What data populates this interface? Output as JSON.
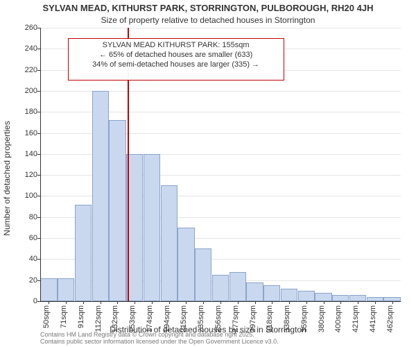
{
  "title_main": "SYLVAN MEAD, KITHURST PARK, STORRINGTON, PULBOROUGH, RH20 4JH",
  "title_sub": "Size of property relative to detached houses in Storrington",
  "y_axis_label": "Number of detached properties",
  "x_axis_label": "Distribution of detached houses by size in Storrington",
  "chart": {
    "type": "histogram",
    "background_color": "#ffffff",
    "grid_color": "#e5e5e5",
    "axis_color": "#333333",
    "bar_fill": "#c9d8ef",
    "bar_border": "#8aa3c8",
    "bar_border_width": 1,
    "ylim": [
      0,
      260
    ],
    "ytick_step": 20,
    "yticks": [
      0,
      20,
      40,
      60,
      80,
      100,
      120,
      140,
      160,
      180,
      200,
      220,
      240,
      260
    ],
    "xticks": [
      "50sqm",
      "71sqm",
      "91sqm",
      "112sqm",
      "132sqm",
      "153sqm",
      "174sqm",
      "194sqm",
      "215sqm",
      "235sqm",
      "256sqm",
      "277sqm",
      "297sqm",
      "318sqm",
      "338sqm",
      "359sqm",
      "380sqm",
      "400sqm",
      "421sqm",
      "441sqm",
      "462sqm"
    ],
    "values": [
      22,
      22,
      92,
      200,
      172,
      140,
      140,
      110,
      70,
      50,
      25,
      28,
      18,
      15,
      12,
      10,
      8,
      6,
      6,
      4,
      4
    ],
    "bar_width_ratio": 0.98
  },
  "reference_line": {
    "value_sqm": 155,
    "index_position": 5.1,
    "color": "#c00000",
    "width": 2
  },
  "annotation": {
    "lines": [
      "SYLVAN MEAD KITHURST PARK: 155sqm",
      "← 65% of detached houses are smaller (633)",
      "34% of semi-detached houses are larger (335) →"
    ],
    "border_color": "#c00000",
    "border_width": 1,
    "top_y_value": 250,
    "bottom_y_value": 210,
    "left_x_index": 1.6,
    "right_x_index": 14.2
  },
  "footer": {
    "line1": "Contains HM Land Registry data © Crown copyright and database right 2025.",
    "line2": "Contains public sector information licensed under the Open Government Licence v3.0."
  },
  "fonts": {
    "title_size_pt": 13,
    "subtitle_size_pt": 12,
    "axis_label_size_pt": 12,
    "tick_size_pt": 11,
    "annotation_size_pt": 11,
    "footer_size_pt": 9
  }
}
